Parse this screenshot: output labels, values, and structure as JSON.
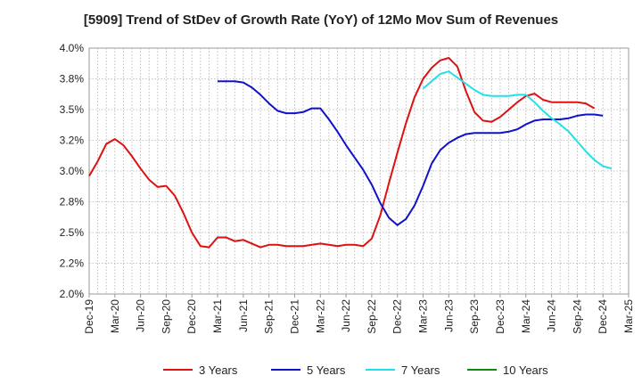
{
  "chart_data": {
    "type": "line",
    "title": "[5909]  Trend of StDev of Growth Rate (YoY) of 12Mo Mov Sum of Revenues",
    "xlabel": "",
    "ylabel": "",
    "ylim": [
      2.0,
      4.0
    ],
    "grid": true,
    "legend_position": "bottom",
    "x_ticks": [
      "Dec-19",
      "Mar-20",
      "Jun-20",
      "Sep-20",
      "Dec-20",
      "Mar-21",
      "Jun-21",
      "Sep-21",
      "Dec-21",
      "Mar-22",
      "Jun-22",
      "Sep-22",
      "Dec-22",
      "Mar-23",
      "Jun-23",
      "Sep-23",
      "Dec-23",
      "Mar-24",
      "Jun-24",
      "Sep-24",
      "Dec-24",
      "Mar-25"
    ],
    "y_ticks": [
      {
        "value": 2.0,
        "label": "2.0%"
      },
      {
        "value": 2.25,
        "label": "2.2%"
      },
      {
        "value": 2.5,
        "label": "2.5%"
      },
      {
        "value": 2.75,
        "label": "2.8%"
      },
      {
        "value": 3.0,
        "label": "3.0%"
      },
      {
        "value": 3.25,
        "label": "3.2%"
      },
      {
        "value": 3.5,
        "label": "3.5%"
      },
      {
        "value": 3.75,
        "label": "3.8%"
      },
      {
        "value": 4.0,
        "label": "4.0%"
      }
    ],
    "series": [
      {
        "name": "3 Years",
        "color": "#dd1111",
        "start_index": 0,
        "values": [
          2.96,
          3.08,
          3.22,
          3.26,
          3.21,
          3.12,
          3.02,
          2.93,
          2.87,
          2.88,
          2.8,
          2.66,
          2.5,
          2.39,
          2.38,
          2.46,
          2.46,
          2.43,
          2.44,
          2.41,
          2.38,
          2.4,
          2.4,
          2.39,
          2.39,
          2.39,
          2.4,
          2.41,
          2.4,
          2.39,
          2.4,
          2.4,
          2.39,
          2.45,
          2.64,
          2.9,
          3.15,
          3.39,
          3.6,
          3.75,
          3.84,
          3.9,
          3.92,
          3.85,
          3.65,
          3.48,
          3.41,
          3.4,
          3.44,
          3.5,
          3.56,
          3.61,
          3.63,
          3.58,
          3.56,
          3.56,
          3.56,
          3.56,
          3.55,
          3.51
        ]
      },
      {
        "name": "5 Years",
        "color": "#1111cc",
        "start_index": 15,
        "values": [
          3.73,
          3.73,
          3.73,
          3.72,
          3.68,
          3.62,
          3.55,
          3.49,
          3.47,
          3.47,
          3.48,
          3.51,
          3.51,
          3.42,
          3.32,
          3.21,
          3.11,
          3.01,
          2.89,
          2.74,
          2.62,
          2.56,
          2.61,
          2.72,
          2.88,
          3.06,
          3.17,
          3.23,
          3.27,
          3.3,
          3.31,
          3.31,
          3.31,
          3.31,
          3.32,
          3.34,
          3.38,
          3.41,
          3.42,
          3.42,
          3.42,
          3.43,
          3.45,
          3.46,
          3.46,
          3.45
        ]
      },
      {
        "name": "7 Years",
        "color": "#22e0e8",
        "start_index": 39,
        "values": [
          3.67,
          3.73,
          3.79,
          3.81,
          3.76,
          3.71,
          3.66,
          3.62,
          3.61,
          3.61,
          3.61,
          3.62,
          3.62,
          3.56,
          3.49,
          3.43,
          3.38,
          3.32,
          3.24,
          3.16,
          3.09,
          3.04,
          3.02
        ]
      },
      {
        "name": "10 Years",
        "color": "#118811",
        "start_index": 0,
        "values": []
      }
    ]
  }
}
